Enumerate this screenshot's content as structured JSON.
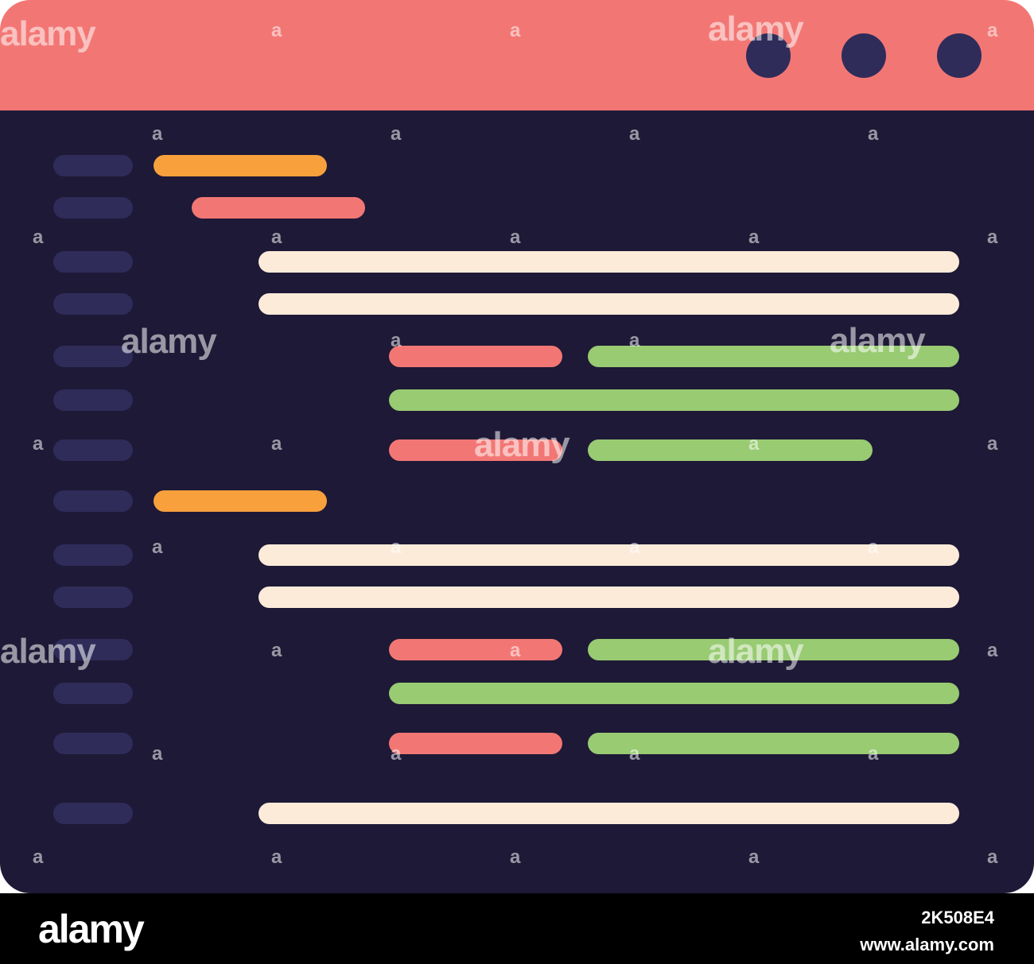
{
  "colors": {
    "titlebar": "#F27774",
    "window_body": "#1E1936",
    "dots": "#2F2C5A",
    "gutter": "#2F2C5A",
    "orange": "#F7A03C",
    "red": "#F27774",
    "cream": "#FDEBDA",
    "green": "#98CB72"
  },
  "titlebar": {
    "dots": [
      "window-dot-icon",
      "window-dot-icon",
      "window-dot-icon"
    ]
  },
  "code_lines": [
    {
      "indent": 0,
      "segments": [
        {
          "color": "orange",
          "length": 0.28
        }
      ]
    },
    {
      "indent": 1,
      "segments": [
        {
          "color": "red",
          "length": 0.28
        }
      ]
    },
    {
      "indent": 2,
      "segments": [
        {
          "color": "cream",
          "length": 1.0
        }
      ]
    },
    {
      "indent": 2,
      "segments": [
        {
          "color": "cream",
          "length": 1.0
        }
      ]
    },
    {
      "indent": 3,
      "segments": [
        {
          "color": "red",
          "length": 0.3
        },
        {
          "color": "green",
          "length": 0.7
        }
      ]
    },
    {
      "indent": 3,
      "segments": [
        {
          "color": "green",
          "length": 1.0
        }
      ]
    },
    {
      "indent": 3,
      "segments": [
        {
          "color": "red",
          "length": 0.3
        },
        {
          "color": "green",
          "length": 0.5
        }
      ]
    },
    {
      "indent": 0,
      "segments": [
        {
          "color": "orange",
          "length": 0.28
        }
      ]
    },
    {
      "indent": 2,
      "segments": [
        {
          "color": "cream",
          "length": 1.0
        }
      ]
    },
    {
      "indent": 2,
      "segments": [
        {
          "color": "cream",
          "length": 1.0
        }
      ]
    },
    {
      "indent": 3,
      "segments": [
        {
          "color": "red",
          "length": 0.3
        },
        {
          "color": "green",
          "length": 0.7
        }
      ]
    },
    {
      "indent": 3,
      "segments": [
        {
          "color": "green",
          "length": 1.0
        }
      ]
    },
    {
      "indent": 3,
      "segments": [
        {
          "color": "red",
          "length": 0.3
        },
        {
          "color": "green",
          "length": 0.7
        }
      ]
    },
    {
      "indent": 2,
      "segments": [
        {
          "color": "cream",
          "length": 1.0
        }
      ]
    }
  ],
  "watermark": {
    "brand": "alamy",
    "letter": "a"
  },
  "footer": {
    "logo": "alamy",
    "image_id": "2K508E4",
    "url": "www.alamy.com"
  }
}
